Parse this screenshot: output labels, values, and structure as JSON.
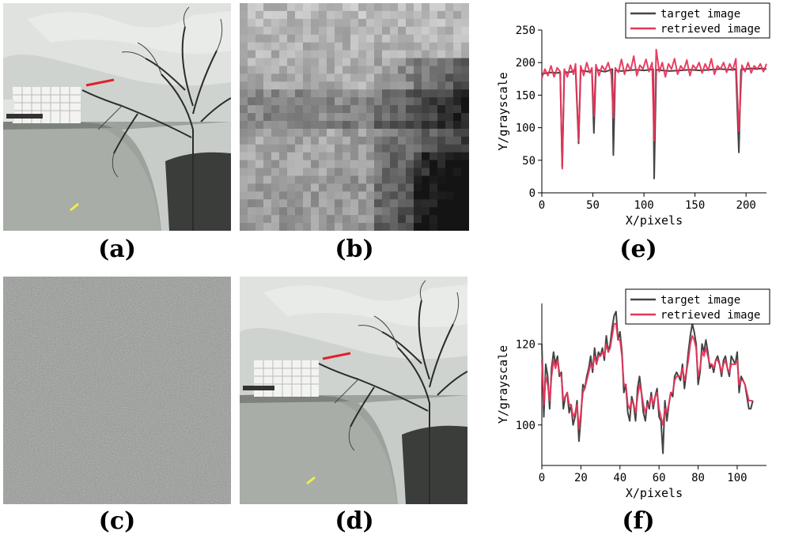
{
  "captions": {
    "a": "(a)",
    "b": "(b)",
    "c": "(c)",
    "d": "(d)",
    "e": "(e)",
    "f": "(f)"
  },
  "colors": {
    "target": "#444444",
    "retrieved": "#e8345a",
    "red_marker": "#e0202a",
    "yellow_marker": "#f0f040"
  },
  "chart_data": [
    {
      "id": "e",
      "type": "line",
      "xlabel": "X/pixels",
      "ylabel": "Y/grayscale",
      "xlim": [
        0,
        220
      ],
      "ylim": [
        0,
        250
      ],
      "xticks": [
        0,
        50,
        100,
        150,
        200
      ],
      "yticks": [
        0,
        50,
        100,
        150,
        200,
        250
      ],
      "legend": "top-right",
      "series": [
        {
          "name": "target image",
          "color": "#444444",
          "x": [
            0,
            5,
            10,
            15,
            18,
            20,
            22,
            25,
            30,
            33,
            36,
            38,
            42,
            46,
            49,
            51,
            53,
            58,
            62,
            66,
            69,
            70,
            72,
            78,
            85,
            92,
            100,
            106,
            109,
            110,
            112,
            118,
            125,
            135,
            145,
            155,
            165,
            175,
            185,
            190,
            193,
            195,
            200,
            205,
            210,
            215,
            220
          ],
          "y": [
            183,
            184,
            185,
            184,
            185,
            40,
            186,
            185,
            186,
            190,
            76,
            188,
            187,
            186,
            188,
            92,
            190,
            187,
            186,
            188,
            190,
            58,
            188,
            187,
            188,
            189,
            188,
            189,
            190,
            22,
            189,
            188,
            187,
            188,
            189,
            188,
            189,
            190,
            189,
            190,
            62,
            189,
            190,
            191,
            190,
            191,
            190
          ]
        },
        {
          "name": "retrieved image",
          "color": "#e8345a",
          "x": [
            0,
            3,
            6,
            9,
            12,
            15,
            18,
            20,
            22,
            25,
            28,
            31,
            33,
            36,
            38,
            41,
            44,
            47,
            49,
            51,
            53,
            56,
            59,
            62,
            65,
            68,
            70,
            72,
            75,
            78,
            81,
            84,
            87,
            90,
            93,
            96,
            99,
            102,
            105,
            108,
            110,
            112,
            115,
            118,
            121,
            124,
            127,
            130,
            133,
            136,
            139,
            142,
            145,
            148,
            151,
            154,
            157,
            160,
            163,
            166,
            169,
            172,
            175,
            178,
            181,
            184,
            187,
            190,
            193,
            196,
            199,
            202,
            205,
            208,
            211,
            214,
            217,
            220
          ],
          "y": [
            176,
            190,
            180,
            195,
            178,
            192,
            186,
            37,
            190,
            178,
            196,
            182,
            198,
            80,
            195,
            180,
            200,
            184,
            192,
            118,
            197,
            180,
            195,
            188,
            200,
            182,
            115,
            192,
            185,
            205,
            182,
            198,
            188,
            210,
            180,
            196,
            190,
            205,
            186,
            200,
            80,
            220,
            186,
            200,
            178,
            198,
            190,
            206,
            182,
            195,
            188,
            204,
            180,
            196,
            190,
            200,
            184,
            198,
            188,
            206,
            182,
            195,
            190,
            200,
            185,
            198,
            188,
            206,
            95,
            196,
            186,
            200,
            184,
            195,
            190,
            198,
            186,
            198
          ]
        }
      ]
    },
    {
      "id": "f",
      "type": "line",
      "xlabel": "X/pixels",
      "ylabel": "Y/grayscale",
      "xlim": [
        0,
        115
      ],
      "ylim": [
        90,
        130
      ],
      "xticks": [
        0,
        20,
        40,
        60,
        80,
        100
      ],
      "yticks": [
        100,
        120
      ],
      "legend": "top-right",
      "series": [
        {
          "name": "target image",
          "color": "#444444",
          "x": [
            0,
            1,
            2,
            3,
            4,
            5,
            6,
            7,
            8,
            9,
            10,
            11,
            12,
            13,
            14,
            15,
            16,
            17,
            18,
            19,
            20,
            21,
            22,
            23,
            24,
            25,
            26,
            27,
            28,
            29,
            30,
            31,
            32,
            33,
            34,
            35,
            36,
            37,
            38,
            39,
            40,
            41,
            42,
            43,
            44,
            45,
            46,
            47,
            48,
            49,
            50,
            51,
            52,
            53,
            54,
            55,
            56,
            57,
            58,
            59,
            60,
            61,
            62,
            63,
            64,
            65,
            66,
            67,
            68,
            69,
            70,
            71,
            72,
            73,
            74,
            75,
            76,
            77,
            78,
            79,
            80,
            81,
            82,
            83,
            84,
            85,
            86,
            87,
            88,
            89,
            90,
            91,
            92,
            93,
            94,
            95,
            96,
            97,
            98,
            99,
            100,
            101,
            102,
            103,
            104,
            105,
            106,
            107,
            108
          ],
          "y": [
            120,
            102,
            115,
            112,
            104,
            114,
            118,
            115,
            117,
            112,
            113,
            104,
            107,
            108,
            103,
            105,
            100,
            102,
            106,
            96,
            102,
            110,
            109,
            112,
            114,
            117,
            113,
            119,
            115,
            118,
            117,
            119,
            116,
            122,
            118,
            120,
            124,
            127,
            128,
            121,
            123,
            118,
            108,
            110,
            103,
            101,
            107,
            105,
            101,
            109,
            112,
            108,
            103,
            101,
            106,
            104,
            108,
            104,
            107,
            109,
            102,
            101,
            93,
            106,
            101,
            105,
            108,
            107,
            112,
            113,
            112,
            111,
            115,
            109,
            113,
            118,
            122,
            125,
            123,
            120,
            110,
            113,
            120,
            118,
            121,
            118,
            114,
            115,
            113,
            116,
            117,
            115,
            112,
            116,
            117,
            114,
            112,
            117,
            116,
            115,
            118,
            108,
            112,
            111,
            110,
            107,
            104,
            104,
            106
          ]
        },
        {
          "name": "retrieved image",
          "color": "#e8345a",
          "x": [
            0,
            1,
            2,
            3,
            4,
            5,
            6,
            7,
            8,
            9,
            10,
            11,
            12,
            13,
            14,
            15,
            16,
            17,
            18,
            19,
            20,
            21,
            22,
            23,
            24,
            25,
            26,
            27,
            28,
            29,
            30,
            31,
            32,
            33,
            34,
            35,
            36,
            37,
            38,
            39,
            40,
            41,
            42,
            43,
            44,
            45,
            46,
            47,
            48,
            49,
            50,
            51,
            52,
            53,
            54,
            55,
            56,
            57,
            58,
            59,
            60,
            61,
            62,
            63,
            64,
            65,
            66,
            67,
            68,
            69,
            70,
            71,
            72,
            73,
            74,
            75,
            76,
            77,
            78,
            79,
            80,
            81,
            82,
            83,
            84,
            85,
            86,
            87,
            88,
            89,
            90,
            91,
            92,
            93,
            94,
            95,
            96,
            97,
            98,
            99,
            100,
            101,
            102,
            103,
            104,
            105,
            106,
            107,
            108
          ],
          "y": [
            116,
            105,
            112,
            110,
            106,
            112,
            116,
            114,
            116,
            113,
            112,
            106,
            107,
            108,
            105,
            105,
            102,
            103,
            105,
            99,
            103,
            108,
            109,
            111,
            113,
            115,
            114,
            117,
            115,
            117,
            117,
            118,
            117,
            120,
            118,
            119,
            122,
            125,
            125,
            121,
            121,
            117,
            110,
            110,
            105,
            104,
            106,
            105,
            103,
            107,
            110,
            108,
            105,
            103,
            105,
            105,
            107,
            105,
            107,
            108,
            104,
            102,
            100,
            104,
            103,
            105,
            108,
            108,
            111,
            112,
            112,
            112,
            114,
            111,
            113,
            116,
            120,
            122,
            121,
            119,
            112,
            114,
            118,
            117,
            119,
            117,
            115,
            115,
            114,
            116,
            116,
            115,
            113,
            115,
            116,
            114,
            113,
            115,
            115,
            115,
            116,
            110,
            111,
            111,
            110,
            108,
            106,
            106,
            106
          ]
        }
      ]
    }
  ]
}
